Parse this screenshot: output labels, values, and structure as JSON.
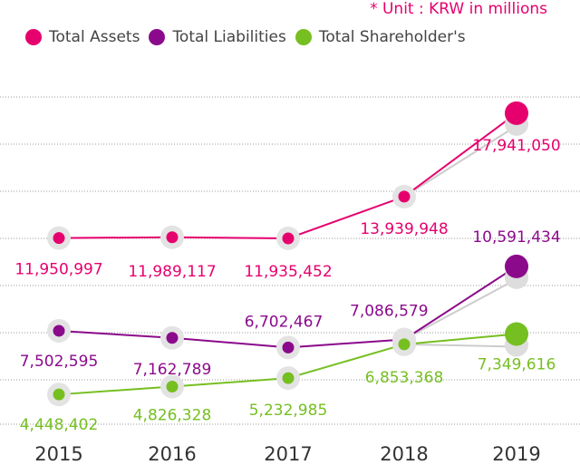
{
  "unit_label": "* Unit : KRW in millions",
  "chart_data": {
    "type": "line",
    "title": "",
    "xlabel": "",
    "ylabel": "",
    "x": [
      "2015",
      "2016",
      "2017",
      "2018",
      "2019"
    ],
    "ylim": [
      3000000,
      21000000
    ],
    "grid": true,
    "legend_position": "top-left",
    "series": [
      {
        "name": "Total Assets",
        "color": "#e6006e",
        "values": [
          11950997,
          11989117,
          11935452,
          13939948,
          17941050
        ],
        "labels": [
          "11,950,997",
          "11,989,117",
          "11,935,452",
          "13,939,948",
          "17,941,050"
        ]
      },
      {
        "name": "Total Liabilities",
        "color": "#8b0a8b",
        "values": [
          7502595,
          7162789,
          6702467,
          7086579,
          10591434
        ],
        "labels": [
          "7,502,595",
          "7,162,789",
          "6,702,467",
          "7,086,579",
          "10,591,434"
        ]
      },
      {
        "name": "Total Shareholder's",
        "color": "#76bf21",
        "values": [
          4448402,
          4826328,
          5232985,
          6853368,
          7349616
        ],
        "labels": [
          "4,448,402",
          "4,826,328",
          "5,232,985",
          "6,853,368",
          "7,349,616"
        ]
      }
    ]
  }
}
